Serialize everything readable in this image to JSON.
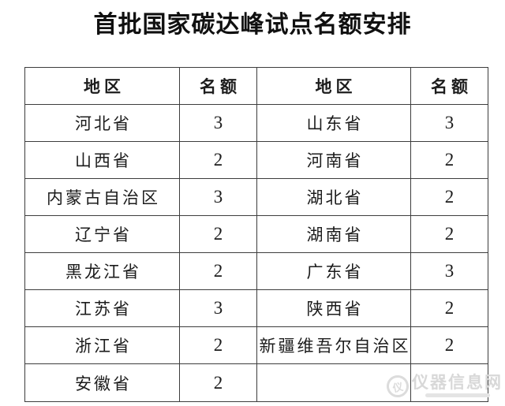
{
  "page": {
    "title": "首批国家碳达峰试点名额安排"
  },
  "table": {
    "headers": [
      "地区",
      "名额",
      "地区",
      "名额"
    ],
    "rows": [
      [
        "河北省",
        "3",
        "山东省",
        "3"
      ],
      [
        "山西省",
        "2",
        "河南省",
        "2"
      ],
      [
        "内蒙古自治区",
        "3",
        "湖北省",
        "2"
      ],
      [
        "辽宁省",
        "2",
        "湖南省",
        "2"
      ],
      [
        "黑龙江省",
        "2",
        "广东省",
        "3"
      ],
      [
        "江苏省",
        "3",
        "陕西省",
        "2"
      ],
      [
        "浙江省",
        "2",
        "新疆维吾尔自治区",
        "2"
      ],
      [
        "安徽省",
        "2",
        "",
        ""
      ]
    ]
  },
  "watermark": {
    "text": "仪器信息网",
    "logo_glyph": "仪",
    "color": "#d8d8d8"
  },
  "colors": {
    "background": "#ffffff",
    "text": "#1c1c1c",
    "border": "#3d3d3d",
    "title": "#101010"
  }
}
